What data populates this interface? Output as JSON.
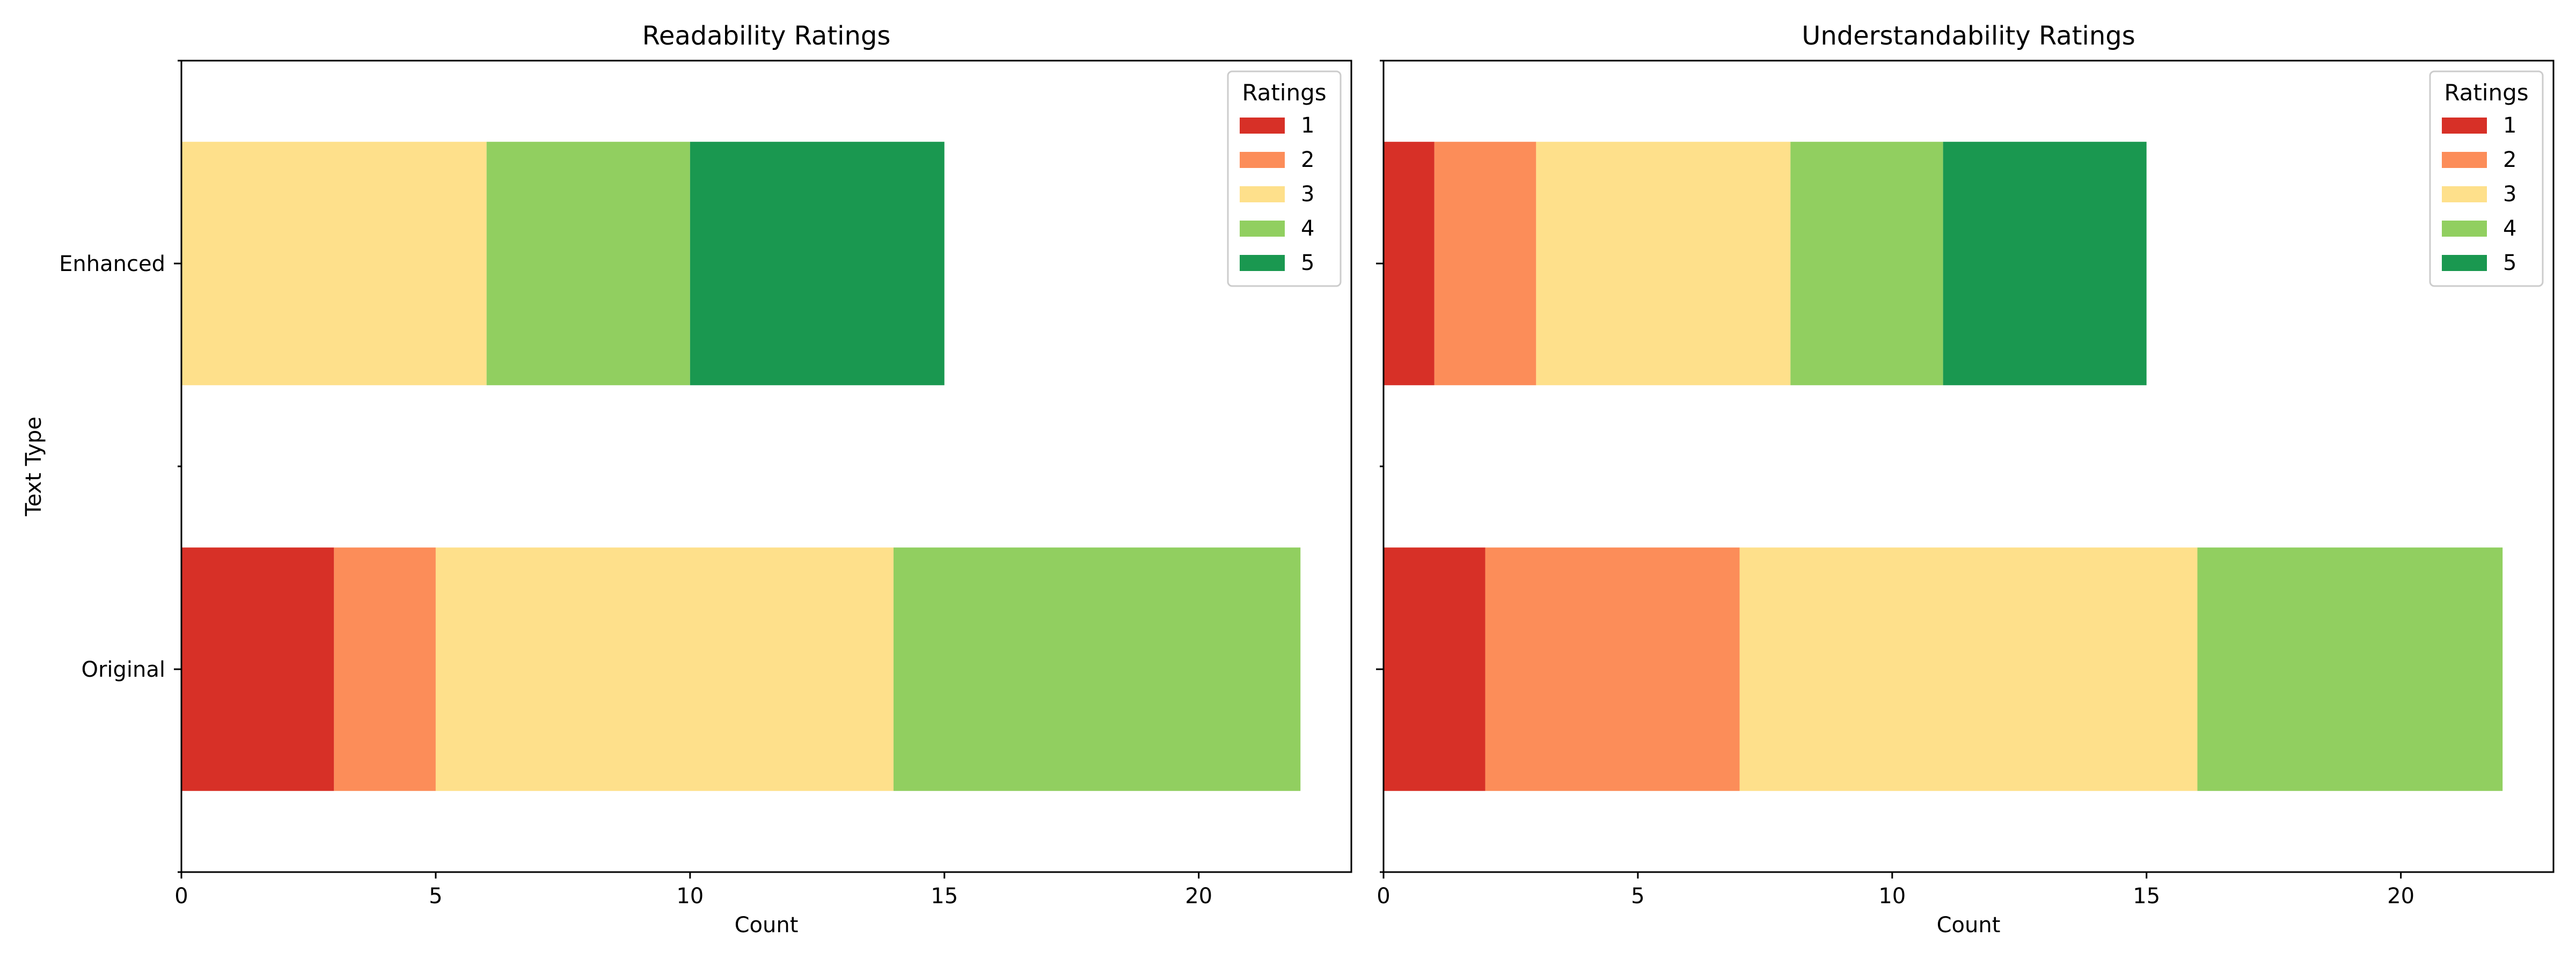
{
  "colors": {
    "1": "#d73027",
    "2": "#fc8d59",
    "3": "#fee08b",
    "4": "#91cf60",
    "5": "#1a9850"
  },
  "chart_data": [
    {
      "type": "bar",
      "orientation": "horizontal",
      "stacked": true,
      "title": "Readability Ratings",
      "xlabel": "Count",
      "ylabel": "Text Type",
      "categories": [
        "Original",
        "Enhanced"
      ],
      "xlim": [
        0,
        23
      ],
      "xticks": [
        0,
        5,
        10,
        15,
        20
      ],
      "grid": false,
      "legend": {
        "title": "Ratings",
        "position": "top-right"
      },
      "series": [
        {
          "name": "1",
          "values": [
            3,
            0
          ]
        },
        {
          "name": "2",
          "values": [
            2,
            0
          ]
        },
        {
          "name": "3",
          "values": [
            9,
            6
          ]
        },
        {
          "name": "4",
          "values": [
            8,
            4
          ]
        },
        {
          "name": "5",
          "values": [
            0,
            5
          ]
        }
      ]
    },
    {
      "type": "bar",
      "orientation": "horizontal",
      "stacked": true,
      "title": "Understandability Ratings",
      "xlabel": "Count",
      "ylabel": "",
      "categories": [
        "Original",
        "Enhanced"
      ],
      "xlim": [
        0,
        23
      ],
      "xticks": [
        0,
        5,
        10,
        15,
        20
      ],
      "grid": false,
      "legend": {
        "title": "Ratings",
        "position": "top-right"
      },
      "series": [
        {
          "name": "1",
          "values": [
            2,
            1
          ]
        },
        {
          "name": "2",
          "values": [
            5,
            2
          ]
        },
        {
          "name": "3",
          "values": [
            9,
            5
          ]
        },
        {
          "name": "4",
          "values": [
            6,
            3
          ]
        },
        {
          "name": "5",
          "values": [
            0,
            4
          ]
        }
      ]
    }
  ]
}
